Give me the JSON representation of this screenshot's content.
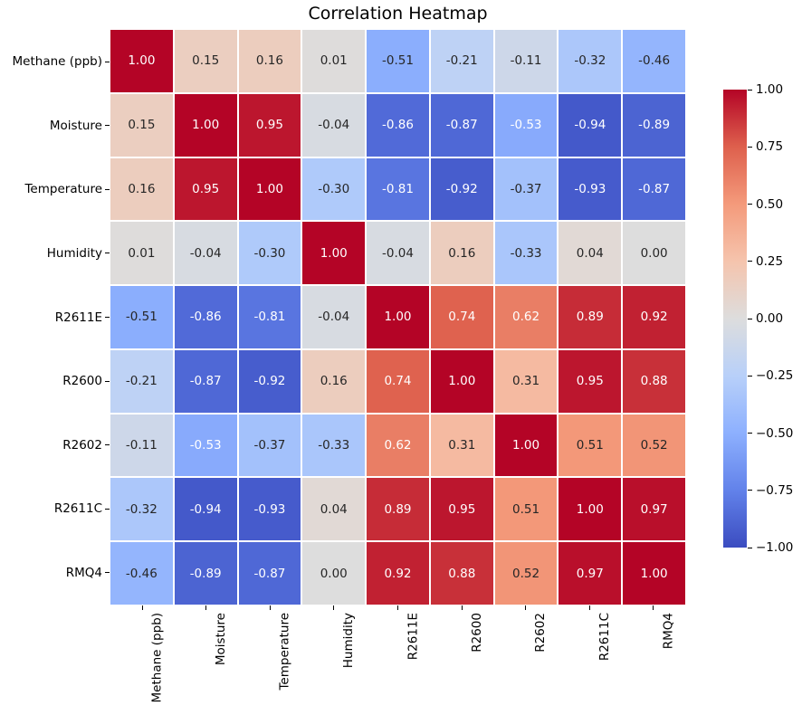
{
  "title": "Correlation Heatmap",
  "chart_data": {
    "type": "heatmap",
    "title": "Correlation Heatmap",
    "categories": [
      "Methane (ppb)",
      "Moisture",
      "Temperature",
      "Humidity",
      "R2611E",
      "R2600",
      "R2602",
      "R2611C",
      "RMQ4"
    ],
    "matrix": [
      [
        1.0,
        0.15,
        0.16,
        0.01,
        -0.51,
        -0.21,
        -0.11,
        -0.32,
        -0.46
      ],
      [
        0.15,
        1.0,
        0.95,
        -0.04,
        -0.86,
        -0.87,
        -0.53,
        -0.94,
        -0.89
      ],
      [
        0.16,
        0.95,
        1.0,
        -0.3,
        -0.81,
        -0.92,
        -0.37,
        -0.93,
        -0.87
      ],
      [
        0.01,
        -0.04,
        -0.3,
        1.0,
        -0.04,
        0.16,
        -0.33,
        0.04,
        0.0
      ],
      [
        -0.51,
        -0.86,
        -0.81,
        -0.04,
        1.0,
        0.74,
        0.62,
        0.89,
        0.92
      ],
      [
        -0.21,
        -0.87,
        -0.92,
        0.16,
        0.74,
        1.0,
        0.31,
        0.95,
        0.88
      ],
      [
        -0.11,
        -0.53,
        -0.37,
        -0.33,
        0.62,
        0.31,
        1.0,
        0.51,
        0.52
      ],
      [
        -0.32,
        -0.94,
        -0.93,
        0.04,
        0.89,
        0.95,
        0.51,
        1.0,
        0.97
      ],
      [
        -0.46,
        -0.89,
        -0.87,
        0.0,
        0.92,
        0.88,
        0.52,
        0.97,
        1.0
      ]
    ],
    "vmin": -1.0,
    "vmax": 1.0,
    "value_decimals": 2,
    "colorbar_tick_labels": [
      "1.00",
      "0.75",
      "0.50",
      "0.25",
      "0.00",
      "−0.25",
      "−0.50",
      "−0.75",
      "−1.00"
    ],
    "colormap": {
      "name": "coolwarm",
      "stops": [
        "#3b4cc0",
        "#6282ea",
        "#8db0fe",
        "#b8d0f9",
        "#dddddd",
        "#f5c4ad",
        "#f49a7b",
        "#de604d",
        "#b40426"
      ]
    },
    "colors": {
      "annot_dark_text": "#262626",
      "annot_light_text": "#ffffff",
      "grid_lines": "#ffffff",
      "tick_marks": "#000000",
      "title_text": "#000000",
      "background": "#ffffff"
    },
    "legend_position": "right-colorbar",
    "grid": "white 2px cell dividers"
  }
}
